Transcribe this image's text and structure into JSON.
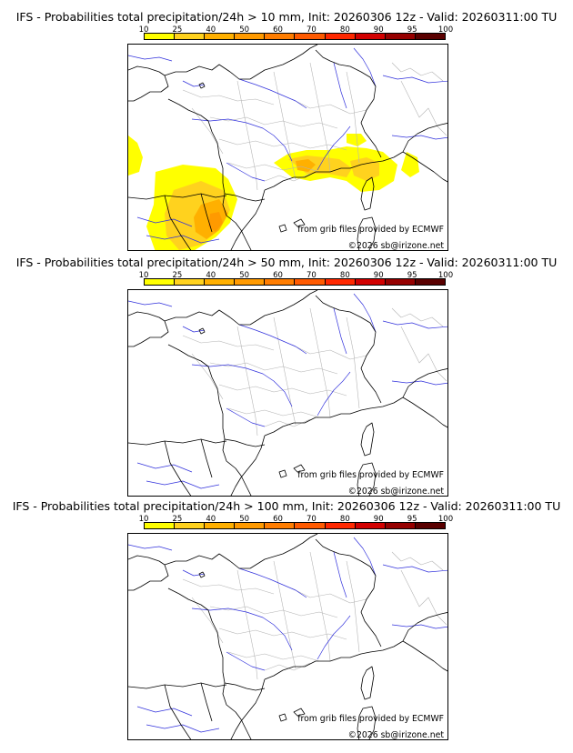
{
  "panels": [
    {
      "title": "IFS - Probabilities total precipitation/24h > 10 mm, Init: 20260306 12z - Valid: 20260311:00 TU",
      "credit_source": "from grib files provided by ECMWF",
      "credit_copyright": "©2026 sb@irizone.net",
      "has_precip": true
    },
    {
      "title": "IFS - Probabilities total precipitation/24h > 50 mm, Init: 20260306 12z - Valid: 20260311:00 TU",
      "credit_source": "from grib files provided by ECMWF",
      "credit_copyright": "©2026 sb@irizone.net",
      "has_precip": false
    },
    {
      "title": "IFS - Probabilities total precipitation/24h > 100 mm, Init: 20260306 12z - Valid: 20260311:00 TU",
      "credit_source": "from grib files provided by ECMWF",
      "credit_copyright": "©2026 sb@irizone.net",
      "has_precip": false
    }
  ],
  "scale": {
    "labels": [
      "10",
      "25",
      "40",
      "50",
      "60",
      "70",
      "80",
      "90",
      "95",
      "100"
    ],
    "colors": [
      "#ffff00",
      "#ffd21e",
      "#ffb000",
      "#ff9a00",
      "#ff7d00",
      "#ff5a00",
      "#ff2800",
      "#d20000",
      "#960000",
      "#5a0000"
    ]
  },
  "map_colors": {
    "coast": "#000000",
    "borders": "#000000",
    "regions": "#b4b4b4",
    "rivers": "#3232dc"
  }
}
